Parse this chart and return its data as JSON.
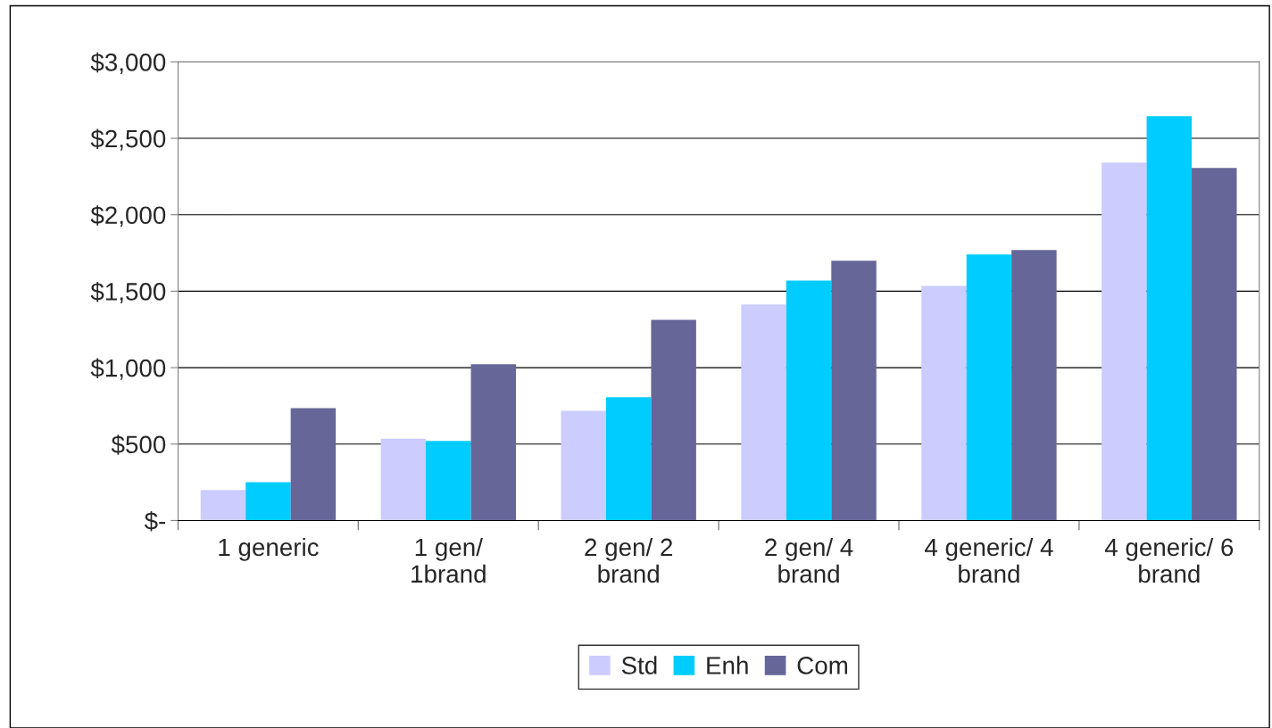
{
  "chart_data": {
    "type": "bar",
    "categories": [
      "1 generic",
      "1 gen/\n1brand",
      "2 gen/ 2\nbrand",
      "2 gen/ 4\nbrand",
      "4 generic/ 4\nbrand",
      "4 generic/ 6\nbrand"
    ],
    "series": [
      {
        "name": "Std",
        "color": "#ccccff",
        "values": [
          200,
          535,
          718,
          1413,
          1535,
          2341
        ]
      },
      {
        "name": "Enh",
        "color": "#00ccff",
        "values": [
          251,
          520,
          806,
          1570,
          1740,
          2645
        ]
      },
      {
        "name": "Com",
        "color": "#666699",
        "values": [
          735,
          1022,
          1313,
          1699,
          1769,
          2306
        ]
      }
    ],
    "ylim": [
      0,
      3000
    ],
    "yticks": [
      {
        "value": 0,
        "label": "$-"
      },
      {
        "value": 500,
        "label": "$500"
      },
      {
        "value": 1000,
        "label": "$1,000"
      },
      {
        "value": 1500,
        "label": "$1,500"
      },
      {
        "value": 2000,
        "label": "$2,000"
      },
      {
        "value": 2500,
        "label": "$2,500"
      },
      {
        "value": 3000,
        "label": "$3,000"
      }
    ],
    "grid": "y",
    "legend": "bottom"
  }
}
